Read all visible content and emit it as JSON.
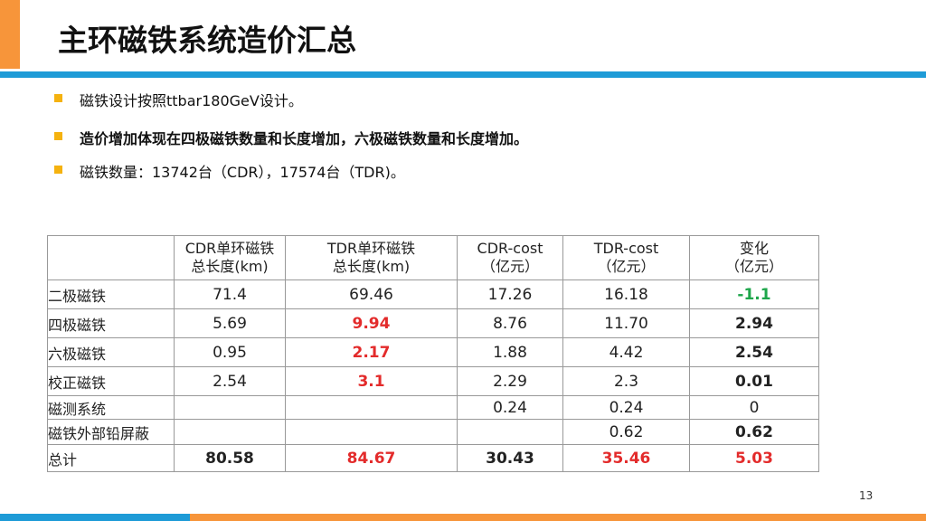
{
  "header": {
    "title": "主环磁铁系统造价汇总"
  },
  "bullets": [
    "磁铁设计按照ttbar180GeV设计。",
    "造价增加体现在四极磁铁数量和长度增加，六极磁铁数量和长度增加。",
    "磁铁数量：13742台（CDR），17574台（TDR)。"
  ],
  "table": {
    "columns": [
      [
        "CDR单环磁铁",
        "总长度(km)"
      ],
      [
        "TDR单环磁铁",
        "总长度(km)"
      ],
      [
        "CDR-cost",
        "（亿元）"
      ],
      [
        "TDR-cost",
        "（亿元）"
      ],
      [
        "变化",
        "（亿元）"
      ]
    ],
    "rows": [
      {
        "label": "二极磁铁",
        "cells": [
          "71.4",
          "69.46",
          "17.26",
          "16.18",
          "-1.1"
        ]
      },
      {
        "label": "四极磁铁",
        "cells": [
          "5.69",
          "9.94",
          "8.76",
          "11.70",
          "2.94"
        ]
      },
      {
        "label": "六极磁铁",
        "cells": [
          "0.95",
          "2.17",
          "1.88",
          "4.42",
          "2.54"
        ]
      },
      {
        "label": "校正磁铁",
        "cells": [
          "2.54",
          "3.1",
          "2.29",
          "2.3",
          "0.01"
        ]
      },
      {
        "label": "磁测系统",
        "cells": [
          null,
          null,
          "0.24",
          "0.24",
          "0"
        ]
      },
      {
        "label": "磁铁外部铅屏蔽",
        "cells": [
          null,
          null,
          null,
          "0.62",
          "0.62"
        ]
      },
      {
        "label": "总计",
        "cells": [
          "80.58",
          "84.67",
          "30.43",
          "35.46",
          "5.03"
        ]
      }
    ]
  },
  "page_number": "13"
}
